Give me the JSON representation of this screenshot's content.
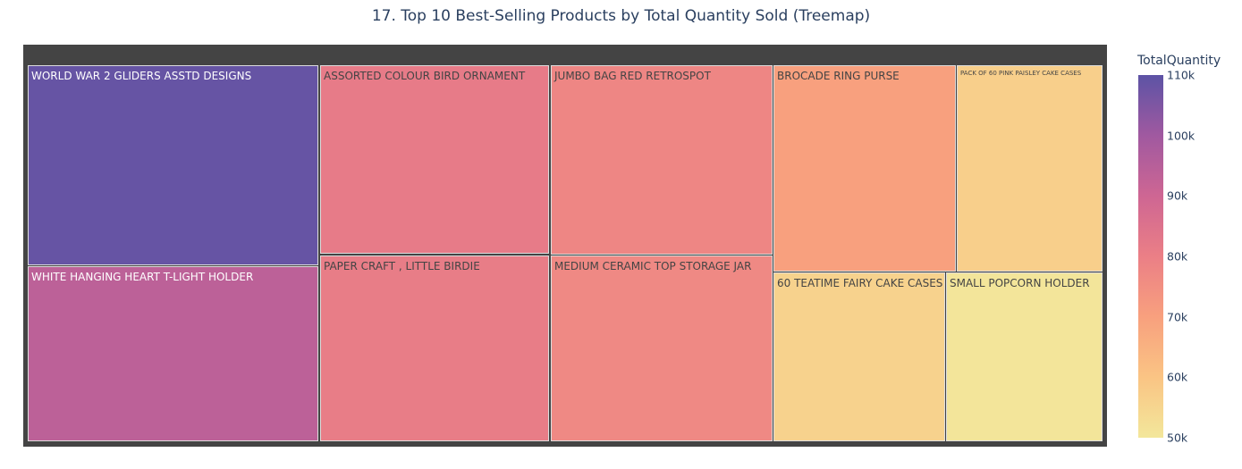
{
  "title": "17. Top 10 Best-Selling Products by Total Quantity Sold (Treemap)",
  "chart_data": {
    "type": "treemap",
    "title": "17. Top 10 Best-Selling Products by Total Quantity Sold (Treemap)",
    "color_metric": "TotalQuantity",
    "items": [
      {
        "label": "WORLD WAR 2 GLIDERS ASSTD DESIGNS",
        "value": 108500
      },
      {
        "label": "WHITE HANGING HEART T-LIGHT HOLDER",
        "value": 94000
      },
      {
        "label": "ASSORTED COLOUR BIRD ORNAMENT",
        "value": 81500
      },
      {
        "label": "PAPER CRAFT , LITTLE BIRDIE",
        "value": 81000
      },
      {
        "label": "JUMBO BAG RED RETROSPOT",
        "value": 78000
      },
      {
        "label": "MEDIUM CERAMIC TOP STORAGE JAR",
        "value": 77000
      },
      {
        "label": "BROCADE RING PURSE",
        "value": 70000
      },
      {
        "label": "PACK OF 60 PINK PAISLEY CAKE CASES",
        "value": 57000
      },
      {
        "label": "60 TEATIME FAIRY CAKE CASES",
        "value": 56000
      },
      {
        "label": "SMALL POPCORN HOLDER",
        "value": 50500
      }
    ],
    "colorbar": {
      "title": "TotalQuantity",
      "range": [
        50000,
        110000
      ],
      "ticks": [
        "110k",
        "100k",
        "90k",
        "80k",
        "70k",
        "60k",
        "50k"
      ]
    },
    "colors": {
      "110k": "#5c53a5",
      "100k": "#a059a0",
      "90k": "#ce6693",
      "80k": "#eb7f86",
      "70k": "#f8a07e",
      "60k": "#fac484",
      "50k": "#f3e79b"
    }
  }
}
